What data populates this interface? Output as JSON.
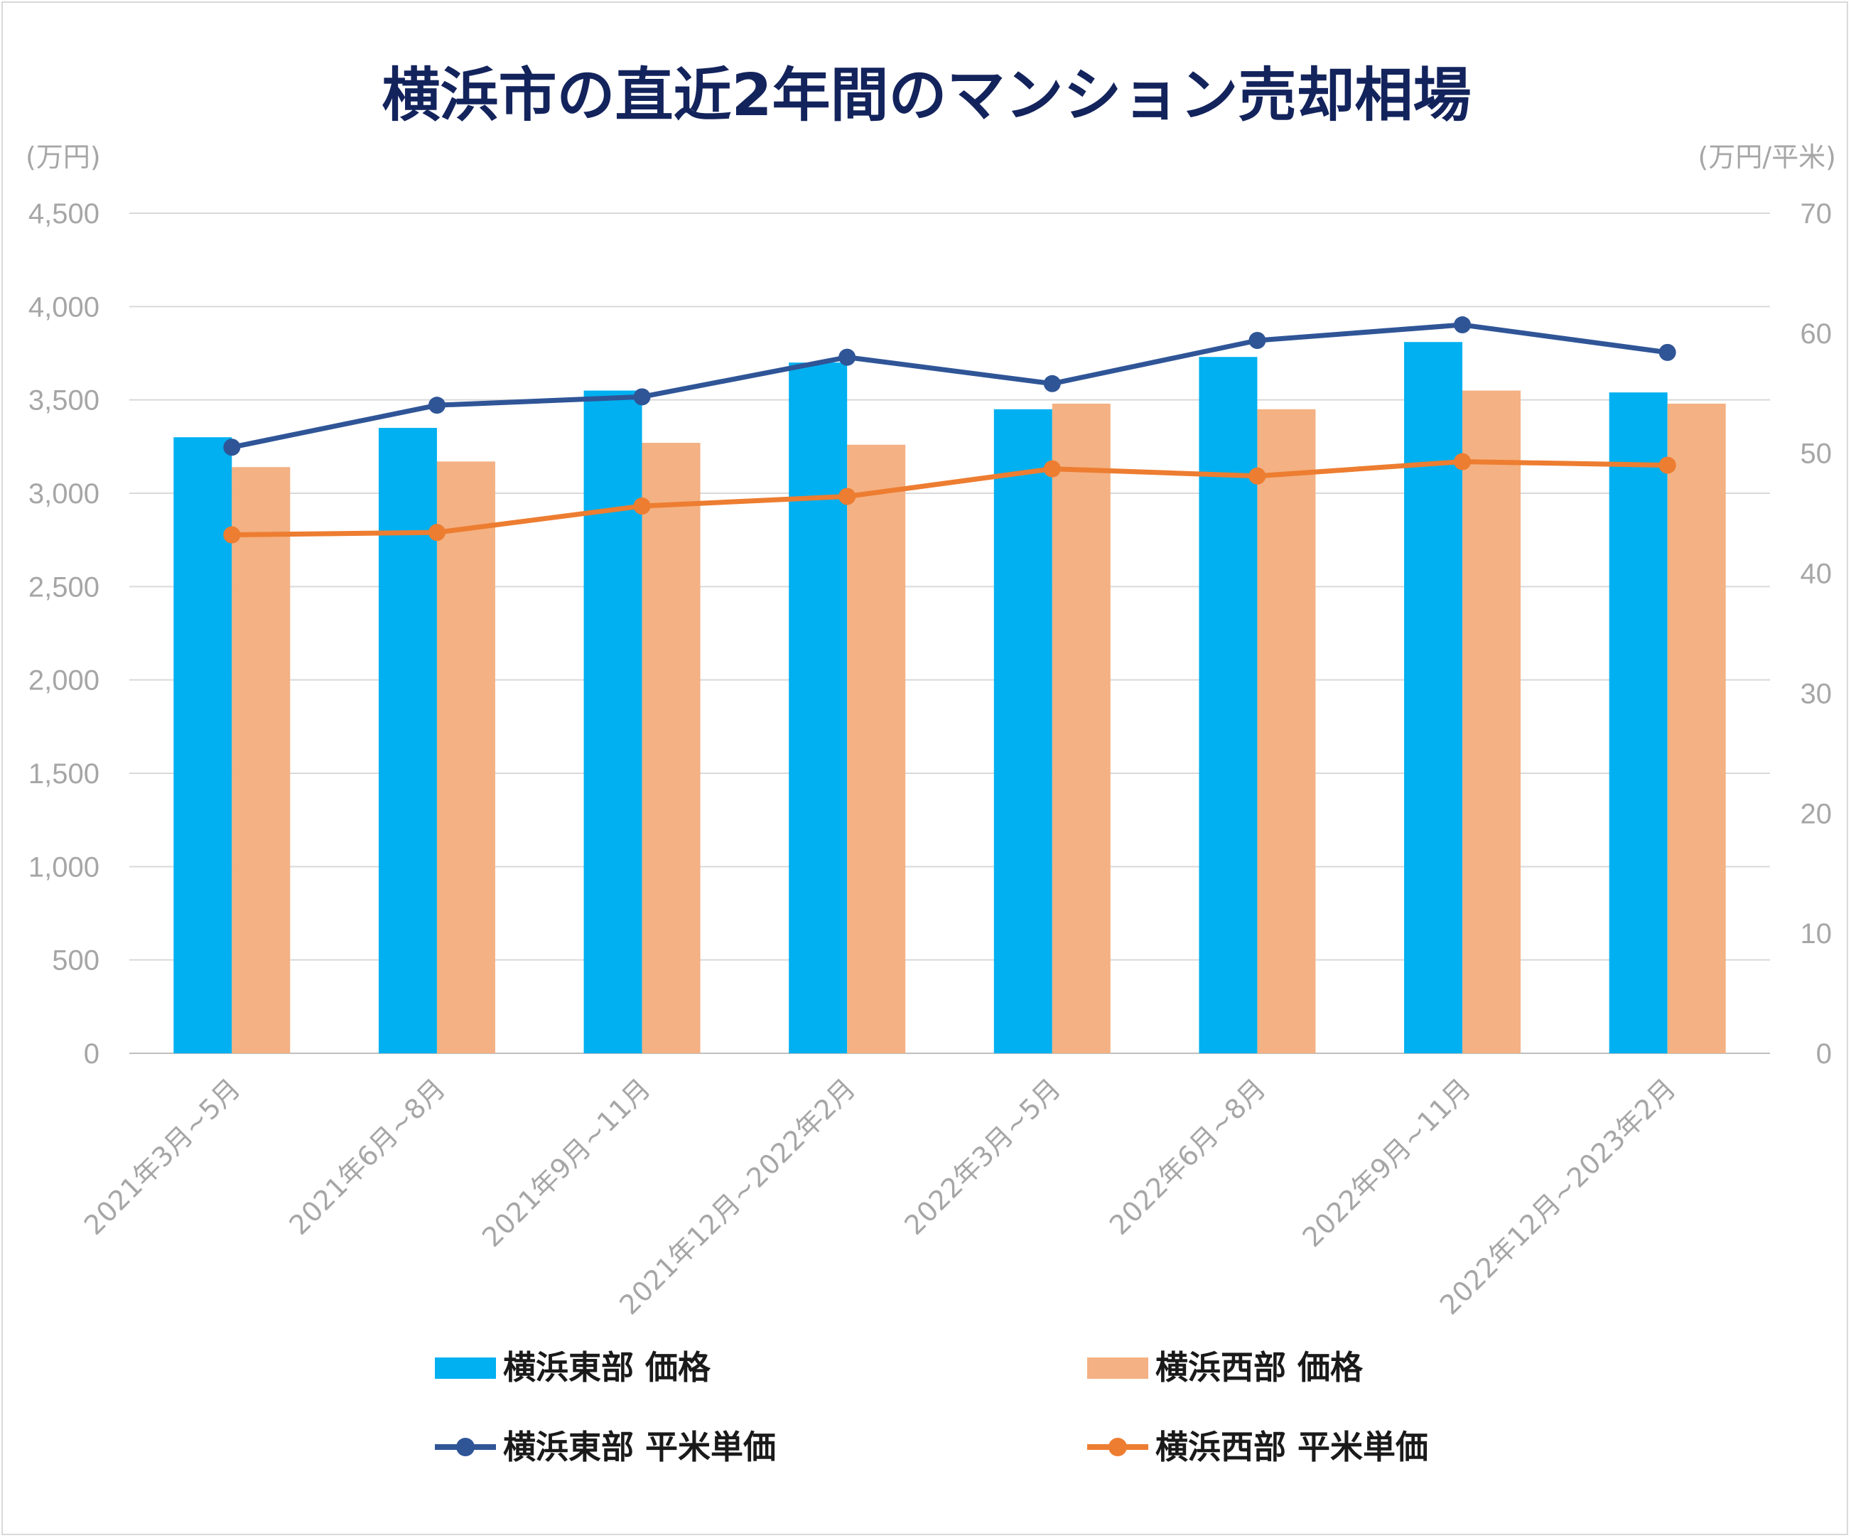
{
  "chart_data": {
    "type": "bar",
    "title": "横浜市の直近2年間のマンション売却相場",
    "y_left_unit": "(万円)",
    "y_right_unit": "(万円/平米)",
    "y_left_ticks": [
      "0",
      "500",
      "1,000",
      "1,500",
      "2,000",
      "2,500",
      "3,000",
      "3,500",
      "4,000",
      "4,500"
    ],
    "y_right_ticks": [
      "0",
      "10",
      "20",
      "30",
      "40",
      "50",
      "60",
      "70"
    ],
    "ylim_left": [
      0,
      4500
    ],
    "ylim_right": [
      0,
      70
    ],
    "grid": true,
    "legend_position": "bottom",
    "categories": [
      "2021年3月~5月",
      "2021年6月~8月",
      "2021年9月~11月",
      "2021年12月~2022年2月",
      "2022年3月~5月",
      "2022年6月~8月",
      "2022年9月~11月",
      "2022年12月~2023年2月"
    ],
    "series": [
      {
        "name": "横浜東部 価格",
        "kind": "bar",
        "axis": "left",
        "color": "#00b0f0",
        "values": [
          3300,
          3350,
          3550,
          3700,
          3450,
          3730,
          3810,
          3540
        ]
      },
      {
        "name": "横浜西部 価格",
        "kind": "bar",
        "axis": "left",
        "color": "#f4b183",
        "values": [
          3140,
          3170,
          3270,
          3260,
          3480,
          3450,
          3550,
          3480
        ]
      },
      {
        "name": "横浜東部 平米単価",
        "kind": "line",
        "axis": "right",
        "color": "#2f5597",
        "values": [
          50.5,
          54.0,
          54.7,
          58.0,
          55.8,
          59.4,
          60.7,
          58.4
        ]
      },
      {
        "name": "横浜西部 平米単価",
        "kind": "line",
        "axis": "right",
        "color": "#ed7d31",
        "values": [
          43.2,
          43.4,
          45.6,
          46.4,
          48.7,
          48.1,
          49.3,
          49.0
        ]
      }
    ]
  }
}
